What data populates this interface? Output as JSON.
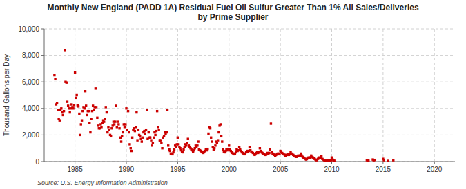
{
  "chart_data": {
    "type": "scatter",
    "title": "Monthly New England (PADD 1A) Residual Fuel Oil Sulfur Greater Than 1% All Sales/Deliveries\nby Prime Supplier",
    "ylabel": "Thousand Gallons per Day",
    "source": "Source: U.S. Energy Information Administration",
    "color": "#cc0000",
    "marker": "square",
    "grid": true,
    "xlim": [
      1982,
      2022
    ],
    "ylim": [
      0,
      10000
    ],
    "xticks": [
      1985,
      1990,
      1995,
      2000,
      2005,
      2010,
      2015,
      2020
    ],
    "yticks": [
      0,
      {
        "value": 2000,
        "label": "2,000"
      },
      {
        "value": 4000,
        "label": "4,000"
      },
      {
        "value": 6000,
        "label": "6,000"
      },
      {
        "value": 8000,
        "label": "8,000"
      },
      {
        "value": 10000,
        "label": "10,000"
      }
    ],
    "x": [
      1983.0,
      1983.08,
      1983.17,
      1983.25,
      1983.33,
      1983.42,
      1983.5,
      1983.58,
      1983.67,
      1983.75,
      1983.83,
      1983.92,
      1984.0,
      1984.08,
      1984.17,
      1984.25,
      1984.33,
      1984.42,
      1984.5,
      1984.58,
      1984.67,
      1984.75,
      1984.83,
      1984.92,
      1985.0,
      1985.08,
      1985.17,
      1985.25,
      1985.33,
      1985.42,
      1985.5,
      1985.58,
      1985.67,
      1985.75,
      1985.83,
      1985.92,
      1986.0,
      1986.08,
      1986.17,
      1986.25,
      1986.33,
      1986.42,
      1986.5,
      1986.58,
      1986.67,
      1986.75,
      1986.83,
      1986.92,
      1987.0,
      1987.08,
      1987.17,
      1987.25,
      1987.33,
      1987.42,
      1987.5,
      1987.58,
      1987.67,
      1987.75,
      1987.83,
      1987.92,
      1988.0,
      1988.08,
      1988.17,
      1988.25,
      1988.33,
      1988.42,
      1988.5,
      1988.58,
      1988.67,
      1988.75,
      1988.83,
      1988.92,
      1989.0,
      1989.08,
      1989.17,
      1989.25,
      1989.33,
      1989.42,
      1989.5,
      1989.58,
      1989.67,
      1989.75,
      1989.83,
      1989.92,
      1990.0,
      1990.08,
      1990.17,
      1990.25,
      1990.33,
      1990.42,
      1990.5,
      1990.58,
      1990.67,
      1990.75,
      1990.83,
      1990.92,
      1991.0,
      1991.08,
      1991.17,
      1991.25,
      1991.33,
      1991.42,
      1991.5,
      1991.58,
      1991.67,
      1991.75,
      1991.83,
      1991.92,
      1992.0,
      1992.08,
      1992.17,
      1992.25,
      1992.33,
      1992.42,
      1992.5,
      1992.58,
      1992.67,
      1992.75,
      1992.83,
      1992.92,
      1993.0,
      1993.08,
      1993.17,
      1993.25,
      1993.33,
      1993.42,
      1993.5,
      1993.58,
      1993.67,
      1993.75,
      1993.83,
      1993.92,
      1994.0,
      1994.08,
      1994.17,
      1994.25,
      1994.33,
      1994.42,
      1994.5,
      1994.58,
      1994.67,
      1994.75,
      1994.83,
      1994.92,
      1995.0,
      1995.08,
      1995.17,
      1995.25,
      1995.33,
      1995.42,
      1995.5,
      1995.58,
      1995.67,
      1995.75,
      1995.83,
      1995.92,
      1996.0,
      1996.08,
      1996.17,
      1996.25,
      1996.33,
      1996.42,
      1996.5,
      1996.58,
      1996.67,
      1996.75,
      1996.83,
      1996.92,
      1997.0,
      1997.08,
      1997.17,
      1997.25,
      1997.33,
      1997.42,
      1997.5,
      1997.58,
      1997.67,
      1997.75,
      1997.83,
      1997.92,
      1998.0,
      1998.08,
      1998.17,
      1998.25,
      1998.33,
      1998.42,
      1998.5,
      1998.58,
      1998.67,
      1998.75,
      1998.83,
      1998.92,
      1999.0,
      1999.08,
      1999.17,
      1999.25,
      1999.33,
      1999.42,
      1999.5,
      1999.58,
      1999.67,
      1999.75,
      1999.83,
      1999.92,
      2000.0,
      2000.08,
      2000.17,
      2000.25,
      2000.33,
      2000.42,
      2000.5,
      2000.58,
      2000.67,
      2000.75,
      2000.83,
      2000.92,
      2001.0,
      2001.08,
      2001.17,
      2001.25,
      2001.33,
      2001.42,
      2001.5,
      2001.58,
      2001.67,
      2001.75,
      2001.83,
      2001.92,
      2002.0,
      2002.08,
      2002.17,
      2002.25,
      2002.33,
      2002.42,
      2002.5,
      2002.58,
      2002.67,
      2002.75,
      2002.83,
      2002.92,
      2003.0,
      2003.08,
      2003.17,
      2003.25,
      2003.33,
      2003.42,
      2003.5,
      2003.58,
      2003.67,
      2003.75,
      2003.83,
      2003.92,
      2004.0,
      2004.08,
      2004.17,
      2004.25,
      2004.33,
      2004.42,
      2004.5,
      2004.58,
      2004.67,
      2004.75,
      2004.83,
      2004.92,
      2005.0,
      2005.08,
      2005.17,
      2005.25,
      2005.33,
      2005.42,
      2005.5,
      2005.58,
      2005.67,
      2005.75,
      2005.83,
      2005.92,
      2006.0,
      2006.08,
      2006.17,
      2006.25,
      2006.33,
      2006.42,
      2006.5,
      2006.58,
      2006.67,
      2006.75,
      2006.83,
      2006.92,
      2007.0,
      2007.08,
      2007.17,
      2007.25,
      2007.33,
      2007.42,
      2007.5,
      2007.58,
      2007.67,
      2007.75,
      2007.83,
      2007.92,
      2008.0,
      2008.08,
      2008.17,
      2008.25,
      2008.33,
      2008.42,
      2008.5,
      2008.58,
      2008.67,
      2008.75,
      2008.83,
      2008.92,
      2009.0,
      2009.08,
      2009.17,
      2009.25,
      2009.33,
      2009.42,
      2009.5,
      2009.58,
      2009.67,
      2009.75,
      2009.83,
      2009.92,
      2010.0,
      2010.08,
      2010.17,
      2010.25,
      2013.42,
      2013.5,
      2013.58,
      2014.0,
      2014.08,
      2014.17,
      2015.0,
      2015.08,
      2015.5,
      2016.0
    ],
    "values": [
      6500,
      6200,
      4300,
      4400,
      3900,
      3200,
      3100,
      3900,
      4000,
      3700,
      3500,
      3800,
      8400,
      6000,
      5950,
      4500,
      4200,
      4000,
      3700,
      4000,
      4300,
      4100,
      4000,
      4250,
      6700,
      4800,
      5000,
      4250,
      4150,
      3600,
      2000,
      2800,
      3100,
      3800,
      4100,
      4000,
      5300,
      4200,
      3500,
      3800,
      3800,
      2900,
      2200,
      3200,
      3800,
      4200,
      3900,
      4100,
      5500,
      4100,
      3300,
      2700,
      2500,
      2500,
      2800,
      2600,
      2900,
      3100,
      3000,
      3200,
      4100,
      3700,
      2200,
      2600,
      2400,
      2000,
      1900,
      2500,
      2700,
      3000,
      2800,
      3000,
      4200,
      2600,
      3000,
      2800,
      2500,
      1800,
      1500,
      1900,
      2200,
      2800,
      2600,
      2800,
      4000,
      2400,
      3800,
      2200,
      1300,
      1000,
      800,
      1800,
      2400,
      2500,
      2300,
      2600,
      3700,
      1600,
      2400,
      2000,
      1900,
      1700,
      1500,
      1800,
      2200,
      2300,
      2100,
      2400,
      3900,
      1700,
      2200,
      1800,
      1800,
      1600,
      1200,
      1400,
      1800,
      2200,
      2000,
      2300,
      3800,
      2600,
      2400,
      1600,
      1600,
      1400,
      1000,
      1800,
      1900,
      2200,
      2100,
      2200,
      3900,
      1200,
      900,
      800,
      600,
      600,
      550,
      700,
      900,
      1200,
      1100,
      1300,
      1800,
      1300,
      1100,
      1000,
      850,
      750,
      700,
      900,
      1100,
      1300,
      1200,
      1400,
      1700,
      1200,
      1100,
      1000,
      900,
      850,
      750,
      850,
      1000,
      1200,
      1100,
      1200,
      1500,
      900,
      850,
      800,
      750,
      700,
      650,
      750,
      800,
      900,
      850,
      950,
      2100,
      2600,
      2500,
      1800,
      1500,
      1100,
      900,
      1000,
      1200,
      1500,
      1400,
      1600,
      2200,
      2700,
      2800,
      1900,
      1500,
      900,
      750,
      700,
      800,
      900,
      850,
      950,
      1200,
      900,
      800,
      700,
      650,
      600,
      550,
      600,
      700,
      900,
      800,
      850,
      1100,
      900,
      800,
      700,
      650,
      600,
      550,
      600,
      700,
      800,
      750,
      800,
      1100,
      850,
      750,
      700,
      650,
      550,
      500,
      550,
      650,
      700,
      650,
      700,
      1000,
      800,
      700,
      650,
      600,
      550,
      500,
      500,
      550,
      650,
      600,
      650,
      900,
      2850,
      700,
      600,
      550,
      500,
      450,
      500,
      550,
      600,
      550,
      600,
      800,
      750,
      650,
      600,
      550,
      500,
      450,
      500,
      500,
      550,
      500,
      550,
      700,
      600,
      550,
      500,
      450,
      400,
      350,
      350,
      400,
      450,
      400,
      450,
      600,
      450,
      350,
      300,
      250,
      200,
      150,
      180,
      250,
      300,
      280,
      300,
      450,
      350,
      300,
      250,
      200,
      150,
      100,
      120,
      200,
      300,
      250,
      280,
      400,
      200,
      150,
      100,
      80,
      60,
      50,
      60,
      80,
      100,
      90,
      100,
      300,
      150,
      80,
      60,
      100,
      80,
      60,
      150,
      100,
      120,
      200,
      100,
      50,
      100
    ]
  }
}
